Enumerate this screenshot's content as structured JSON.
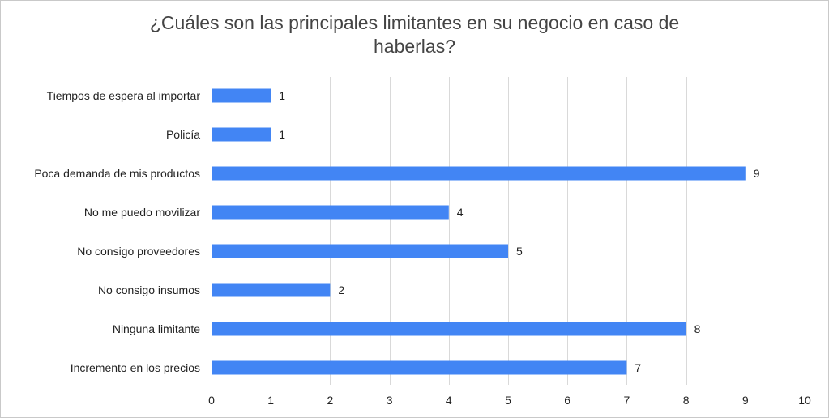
{
  "chart_data": {
    "type": "bar",
    "orientation": "horizontal",
    "title_lines": [
      "¿Cuáles son las principales limitantes en su negocio en caso de",
      "haberlas?"
    ],
    "categories": [
      "Tiempos de espera al importar",
      "Policía",
      "Poca demanda de mis productos",
      "No me puedo movilizar",
      "No consigo proveedores",
      "No consigo insumos",
      "Ninguna limitante",
      "Incremento en los precios"
    ],
    "values": [
      1,
      1,
      9,
      4,
      5,
      2,
      8,
      7
    ],
    "xlim": [
      0,
      10
    ],
    "xticks": [
      0,
      1,
      2,
      3,
      4,
      5,
      6,
      7,
      8,
      9,
      10
    ],
    "bar_color": "#4285f4",
    "grid": true,
    "legend": "none",
    "data_labels": true
  }
}
